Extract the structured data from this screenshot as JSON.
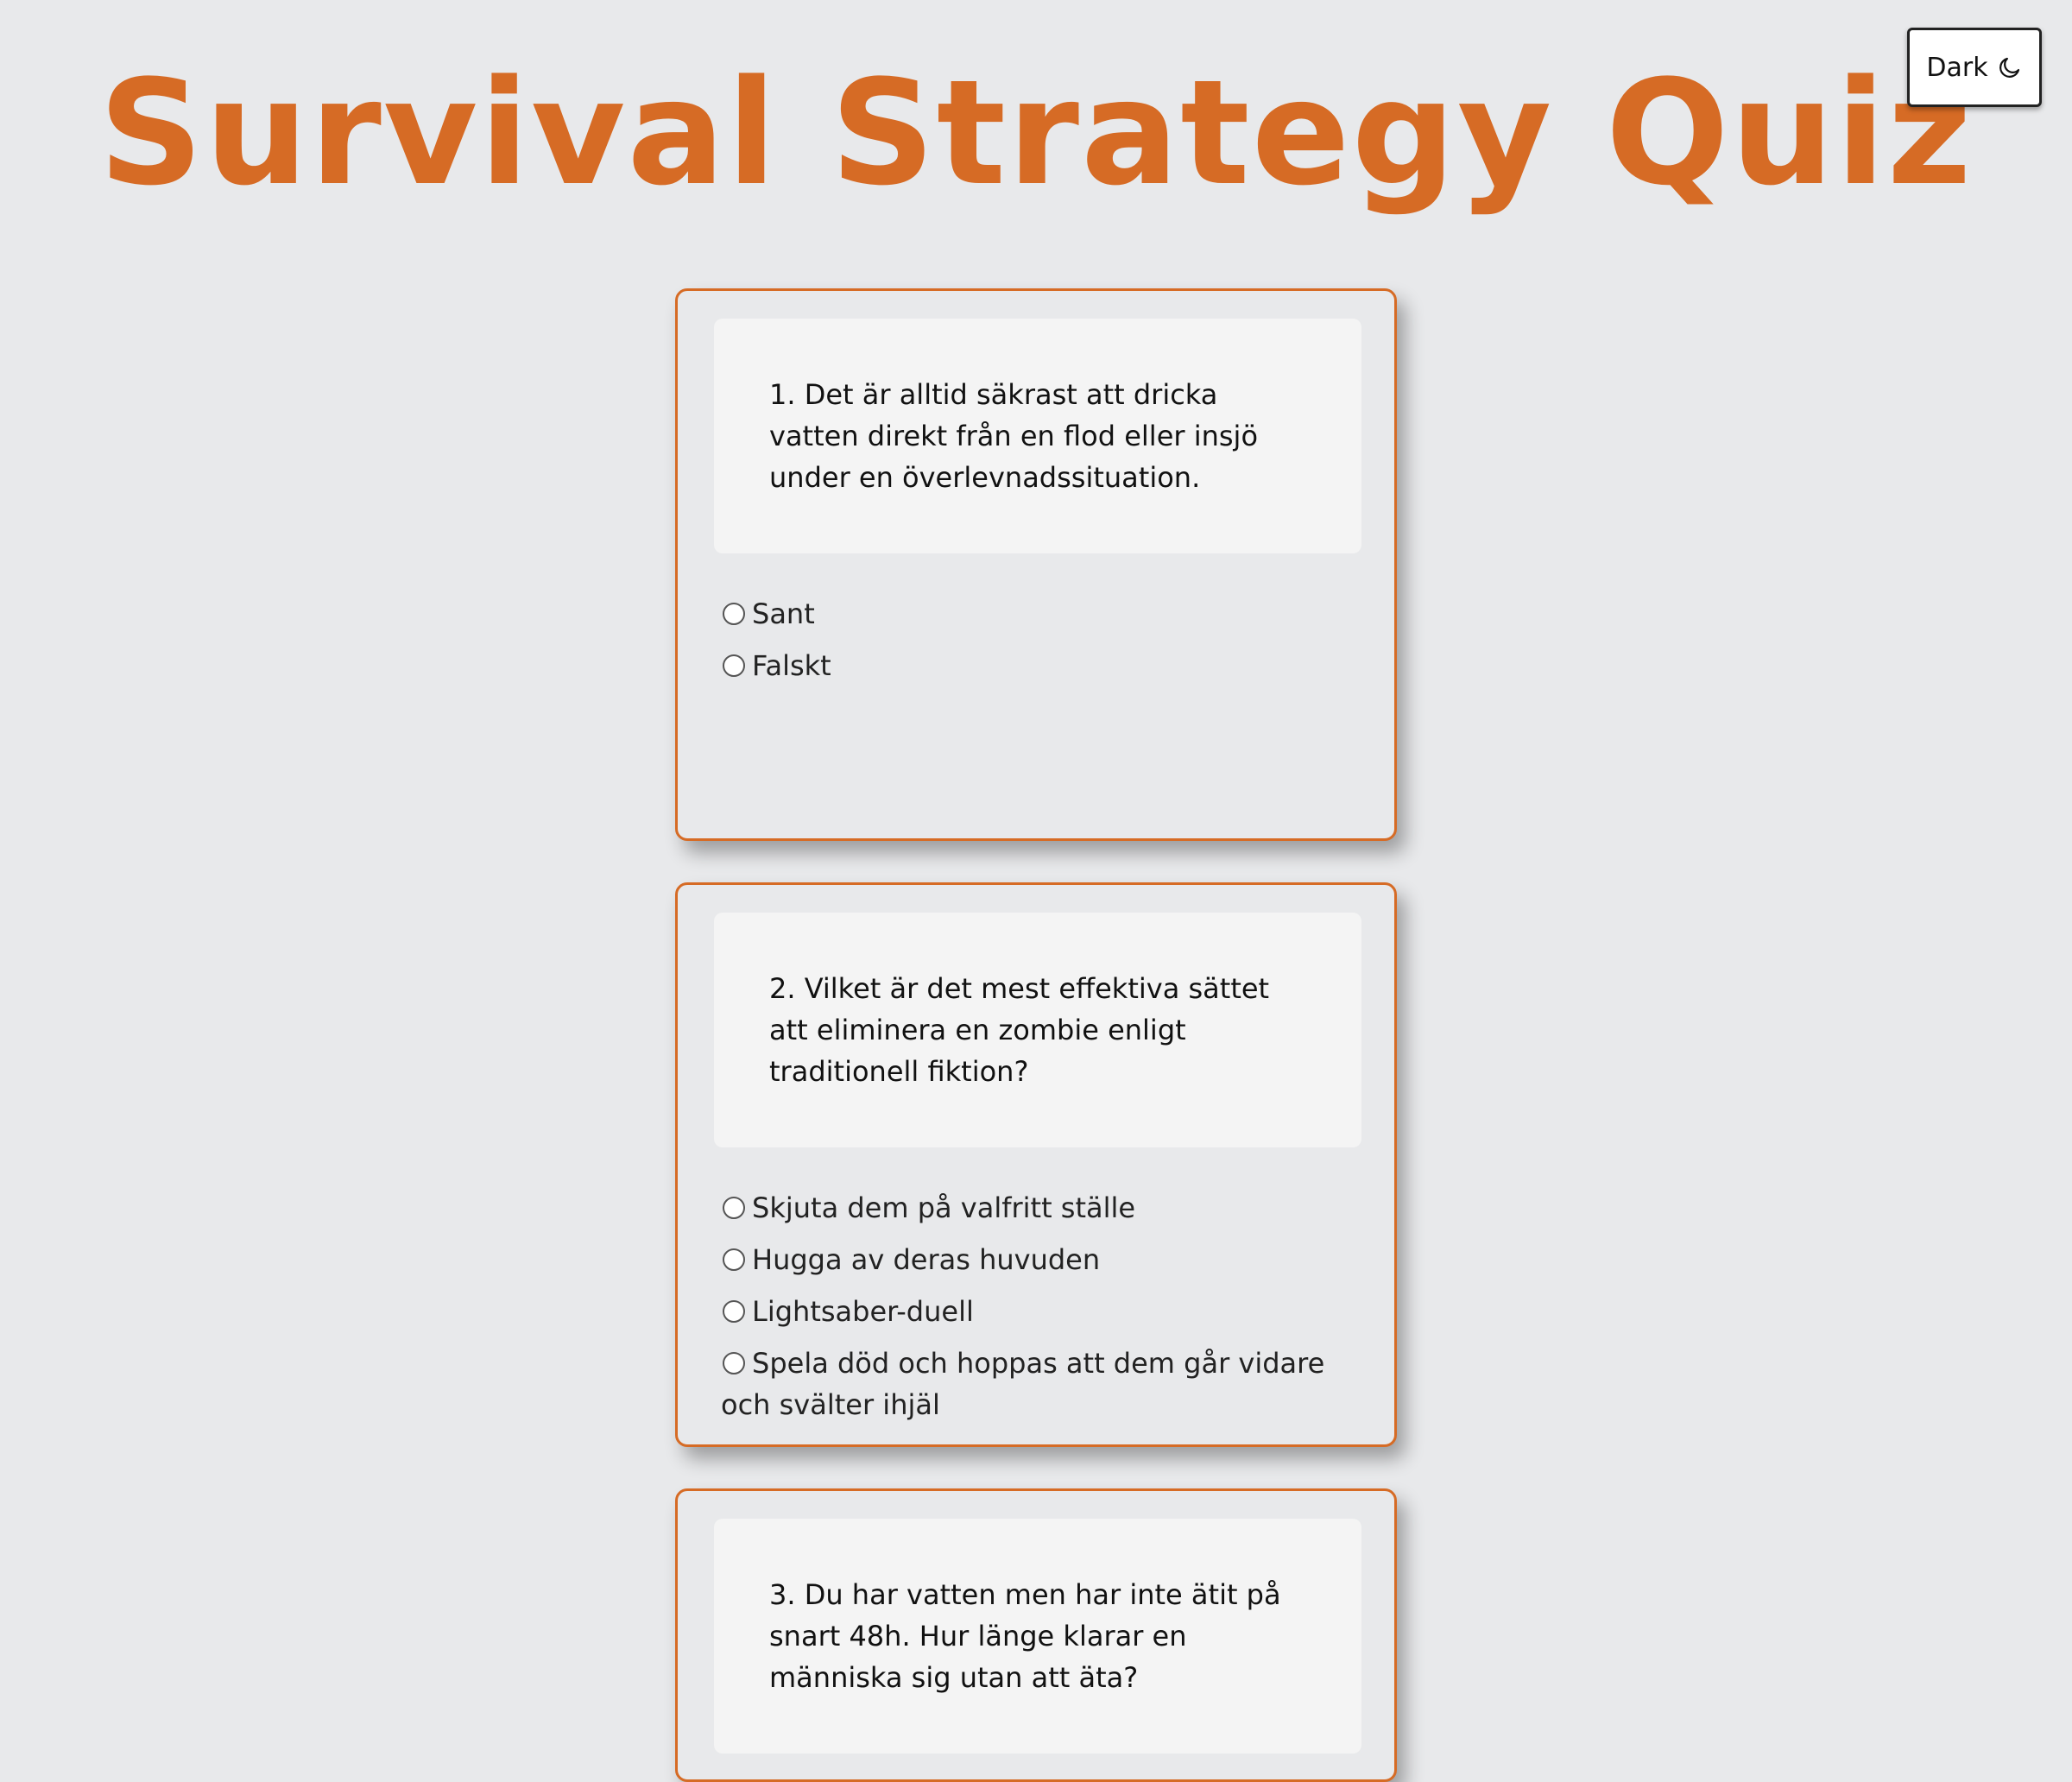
{
  "header": {
    "title": "Survival Strategy Quiz",
    "theme_toggle_label": "Dark"
  },
  "questions": [
    {
      "text": "1. Det är alltid säkrast att dricka vatten direkt från en flod eller insjö under en överlevnadssituation.",
      "options": [
        "Sant",
        "Falskt"
      ]
    },
    {
      "text": "2. Vilket är det mest effektiva sättet att eliminera en zombie enligt traditionell fiktion?",
      "options": [
        "Skjuta dem på valfritt ställe",
        "Hugga av deras huvuden",
        "Lightsaber-duell",
        "Spela död och hoppas att dem går vidare och svälter ihjäl"
      ]
    },
    {
      "text": "3. Du har vatten men har inte ätit på snart 48h. Hur länge klarar en människa sig utan att äta?",
      "options": []
    }
  ],
  "colors": {
    "accent": "#d66b25",
    "background": "#e8e9eb",
    "question_box": "#f4f4f4"
  },
  "icons": {
    "theme_toggle": "moon-icon",
    "option": "radio-circle-icon"
  }
}
